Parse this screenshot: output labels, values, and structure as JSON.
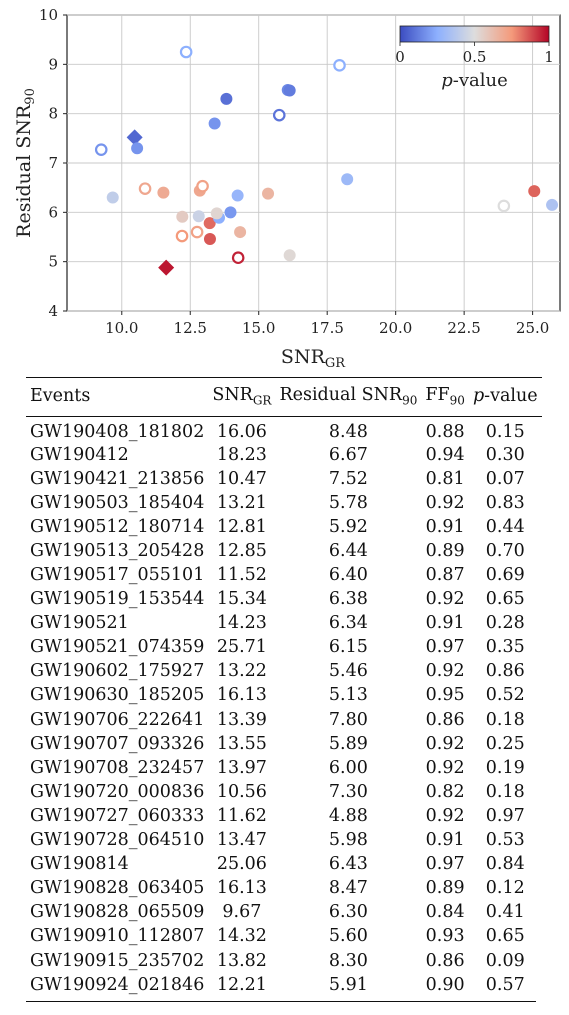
{
  "chart_data": {
    "type": "scatter",
    "xlabel": "SNR_GR",
    "ylabel": "Residual SNR_90",
    "xlim": [
      8.0,
      26.0
    ],
    "ylim": [
      4,
      10
    ],
    "x_ticks": [
      "10.0",
      "12.5",
      "15.0",
      "17.5",
      "20.0",
      "22.5",
      "25.0"
    ],
    "y_ticks": [
      "4",
      "5",
      "6",
      "7",
      "8",
      "9",
      "10"
    ],
    "grid": true,
    "colorbar": {
      "label": "p-value",
      "min": 0,
      "max": 1,
      "ticks": [
        "0",
        "0.5",
        "1"
      ],
      "colormap": "coolwarm",
      "position": "top-right"
    },
    "colors": {
      "low": "#3b4cc0",
      "mid": "#dddddd",
      "high": "#b40426"
    },
    "points": [
      {
        "x": 16.06,
        "y": 8.48,
        "p": 0.15,
        "marker": "filled-circle"
      },
      {
        "x": 18.23,
        "y": 6.67,
        "p": 0.3,
        "marker": "filled-circle"
      },
      {
        "x": 10.47,
        "y": 7.52,
        "p": 0.07,
        "marker": "diamond"
      },
      {
        "x": 13.21,
        "y": 5.78,
        "p": 0.83,
        "marker": "filled-circle"
      },
      {
        "x": 12.81,
        "y": 5.92,
        "p": 0.44,
        "marker": "filled-circle"
      },
      {
        "x": 12.85,
        "y": 6.44,
        "p": 0.7,
        "marker": "filled-circle"
      },
      {
        "x": 11.52,
        "y": 6.4,
        "p": 0.69,
        "marker": "filled-circle"
      },
      {
        "x": 15.34,
        "y": 6.38,
        "p": 0.65,
        "marker": "filled-circle"
      },
      {
        "x": 14.23,
        "y": 6.34,
        "p": 0.28,
        "marker": "filled-circle"
      },
      {
        "x": 25.71,
        "y": 6.15,
        "p": 0.35,
        "marker": "filled-circle"
      },
      {
        "x": 13.22,
        "y": 5.46,
        "p": 0.86,
        "marker": "filled-circle"
      },
      {
        "x": 16.13,
        "y": 5.13,
        "p": 0.52,
        "marker": "filled-circle"
      },
      {
        "x": 13.39,
        "y": 7.8,
        "p": 0.18,
        "marker": "filled-circle"
      },
      {
        "x": 13.55,
        "y": 5.89,
        "p": 0.25,
        "marker": "filled-circle"
      },
      {
        "x": 13.97,
        "y": 6.0,
        "p": 0.19,
        "marker": "filled-circle"
      },
      {
        "x": 10.56,
        "y": 7.3,
        "p": 0.18,
        "marker": "filled-circle"
      },
      {
        "x": 11.62,
        "y": 4.88,
        "p": 0.97,
        "marker": "diamond"
      },
      {
        "x": 13.47,
        "y": 5.98,
        "p": 0.53,
        "marker": "filled-circle"
      },
      {
        "x": 25.06,
        "y": 6.43,
        "p": 0.84,
        "marker": "filled-circle"
      },
      {
        "x": 16.13,
        "y": 8.47,
        "p": 0.12,
        "marker": "filled-circle"
      },
      {
        "x": 9.67,
        "y": 6.3,
        "p": 0.41,
        "marker": "filled-circle"
      },
      {
        "x": 14.32,
        "y": 5.6,
        "p": 0.65,
        "marker": "filled-circle"
      },
      {
        "x": 13.82,
        "y": 8.3,
        "p": 0.09,
        "marker": "filled-circle"
      },
      {
        "x": 12.21,
        "y": 5.91,
        "p": 0.57,
        "marker": "filled-circle"
      },
      {
        "x": 12.35,
        "y": 9.25,
        "p": 0.25,
        "marker": "open-circle"
      },
      {
        "x": 17.95,
        "y": 8.98,
        "p": 0.25,
        "marker": "open-circle"
      },
      {
        "x": 15.75,
        "y": 7.97,
        "p": 0.1,
        "marker": "open-circle"
      },
      {
        "x": 9.25,
        "y": 7.27,
        "p": 0.18,
        "marker": "open-circle"
      },
      {
        "x": 10.85,
        "y": 6.48,
        "p": 0.7,
        "marker": "open-circle"
      },
      {
        "x": 12.95,
        "y": 6.53,
        "p": 0.72,
        "marker": "open-circle"
      },
      {
        "x": 12.75,
        "y": 5.6,
        "p": 0.72,
        "marker": "open-circle"
      },
      {
        "x": 12.2,
        "y": 5.52,
        "p": 0.75,
        "marker": "open-circle"
      },
      {
        "x": 14.25,
        "y": 5.08,
        "p": 0.95,
        "marker": "open-circle"
      },
      {
        "x": 23.95,
        "y": 6.13,
        "p": 0.5,
        "marker": "open-circle"
      }
    ]
  },
  "table": {
    "headers": [
      "Events",
      "SNR_GR",
      "Residual SNR_90",
      "FF_90",
      "p-value"
    ],
    "rows": [
      [
        "GW190408_181802",
        "16.06",
        "8.48",
        "0.88",
        "0.15"
      ],
      [
        "GW190412",
        "18.23",
        "6.67",
        "0.94",
        "0.30"
      ],
      [
        "GW190421_213856",
        "10.47",
        "7.52",
        "0.81",
        "0.07"
      ],
      [
        "GW190503_185404",
        "13.21",
        "5.78",
        "0.92",
        "0.83"
      ],
      [
        "GW190512_180714",
        "12.81",
        "5.92",
        "0.91",
        "0.44"
      ],
      [
        "GW190513_205428",
        "12.85",
        "6.44",
        "0.89",
        "0.70"
      ],
      [
        "GW190517_055101",
        "11.52",
        "6.40",
        "0.87",
        "0.69"
      ],
      [
        "GW190519_153544",
        "15.34",
        "6.38",
        "0.92",
        "0.65"
      ],
      [
        "GW190521",
        "14.23",
        "6.34",
        "0.91",
        "0.28"
      ],
      [
        "GW190521_074359",
        "25.71",
        "6.15",
        "0.97",
        "0.35"
      ],
      [
        "GW190602_175927",
        "13.22",
        "5.46",
        "0.92",
        "0.86"
      ],
      [
        "GW190630_185205",
        "16.13",
        "5.13",
        "0.95",
        "0.52"
      ],
      [
        "GW190706_222641",
        "13.39",
        "7.80",
        "0.86",
        "0.18"
      ],
      [
        "GW190707_093326",
        "13.55",
        "5.89",
        "0.92",
        "0.25"
      ],
      [
        "GW190708_232457",
        "13.97",
        "6.00",
        "0.92",
        "0.19"
      ],
      [
        "GW190720_000836",
        "10.56",
        "7.30",
        "0.82",
        "0.18"
      ],
      [
        "GW190727_060333",
        "11.62",
        "4.88",
        "0.92",
        "0.97"
      ],
      [
        "GW190728_064510",
        "13.47",
        "5.98",
        "0.91",
        "0.53"
      ],
      [
        "GW190814",
        "25.06",
        "6.43",
        "0.97",
        "0.84"
      ],
      [
        "GW190828_063405",
        "16.13",
        "8.47",
        "0.89",
        "0.12"
      ],
      [
        "GW190828_065509",
        "9.67",
        "6.30",
        "0.84",
        "0.41"
      ],
      [
        "GW190910_112807",
        "14.32",
        "5.60",
        "0.93",
        "0.65"
      ],
      [
        "GW190915_235702",
        "13.82",
        "8.30",
        "0.86",
        "0.09"
      ],
      [
        "GW190924_021846",
        "12.21",
        "5.91",
        "0.90",
        "0.57"
      ]
    ]
  }
}
